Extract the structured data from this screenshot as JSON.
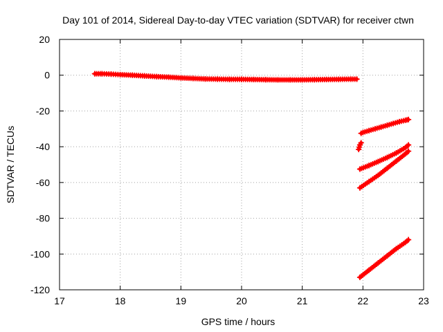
{
  "chart_data": {
    "type": "scatter",
    "title": "Day 101 of 2014, Sidereal Day-to-day VTEC variation (SDTVAR) for receiver ctwn",
    "xlabel": "GPS time / hours",
    "ylabel": "SDTVAR / TECUs",
    "xlim": [
      17,
      23
    ],
    "ylim": [
      -120,
      20
    ],
    "xticks": [
      17,
      18,
      19,
      20,
      21,
      22,
      23
    ],
    "yticks": [
      20,
      0,
      -20,
      -40,
      -60,
      -80,
      -100,
      -120
    ],
    "grid": true,
    "legend": "none",
    "marker": "+",
    "color": "#ff0000",
    "series": [
      {
        "x": [
          17.58,
          17.7,
          17.85,
          18.0,
          18.2,
          18.4,
          18.6,
          18.8,
          19.0,
          19.2,
          19.4,
          19.6,
          19.8,
          20.0,
          20.2,
          20.4,
          20.6,
          20.8,
          21.0,
          21.2,
          21.4,
          21.6,
          21.8,
          21.9
        ],
        "y": [
          0.8,
          0.8,
          0.6,
          0.3,
          0.0,
          -0.4,
          -0.8,
          -1.1,
          -1.5,
          -1.8,
          -2.1,
          -2.2,
          -2.3,
          -2.3,
          -2.4,
          -2.5,
          -2.6,
          -2.6,
          -2.6,
          -2.5,
          -2.4,
          -2.3,
          -2.2,
          -2.2
        ]
      },
      {
        "x": [
          21.97,
          22.0,
          22.1,
          22.2,
          22.3,
          22.4,
          22.5,
          22.6,
          22.7,
          22.75
        ],
        "y": [
          -32.5,
          -32.0,
          -31.0,
          -30.0,
          -29.0,
          -28.0,
          -27.0,
          -26.0,
          -25.2,
          -24.8
        ]
      },
      {
        "x": [
          21.93,
          21.95,
          21.97
        ],
        "y": [
          -41.5,
          -39.0,
          -37.8
        ]
      },
      {
        "x": [
          21.95,
          22.1,
          22.25,
          22.4,
          22.55,
          22.7,
          22.75
        ],
        "y": [
          -52.5,
          -50.5,
          -48.3,
          -46.0,
          -43.5,
          -40.5,
          -39.0
        ]
      },
      {
        "x": [
          21.95,
          22.1,
          22.25,
          22.4,
          22.55,
          22.7,
          22.75
        ],
        "y": [
          -63.0,
          -59.5,
          -56.0,
          -52.0,
          -48.0,
          -44.0,
          -42.5
        ]
      },
      {
        "x": [
          21.95,
          22.1,
          22.25,
          22.4,
          22.55,
          22.7,
          22.75
        ],
        "y": [
          -113.0,
          -109.0,
          -105.0,
          -101.0,
          -97.0,
          -93.5,
          -92.0
        ]
      }
    ]
  }
}
